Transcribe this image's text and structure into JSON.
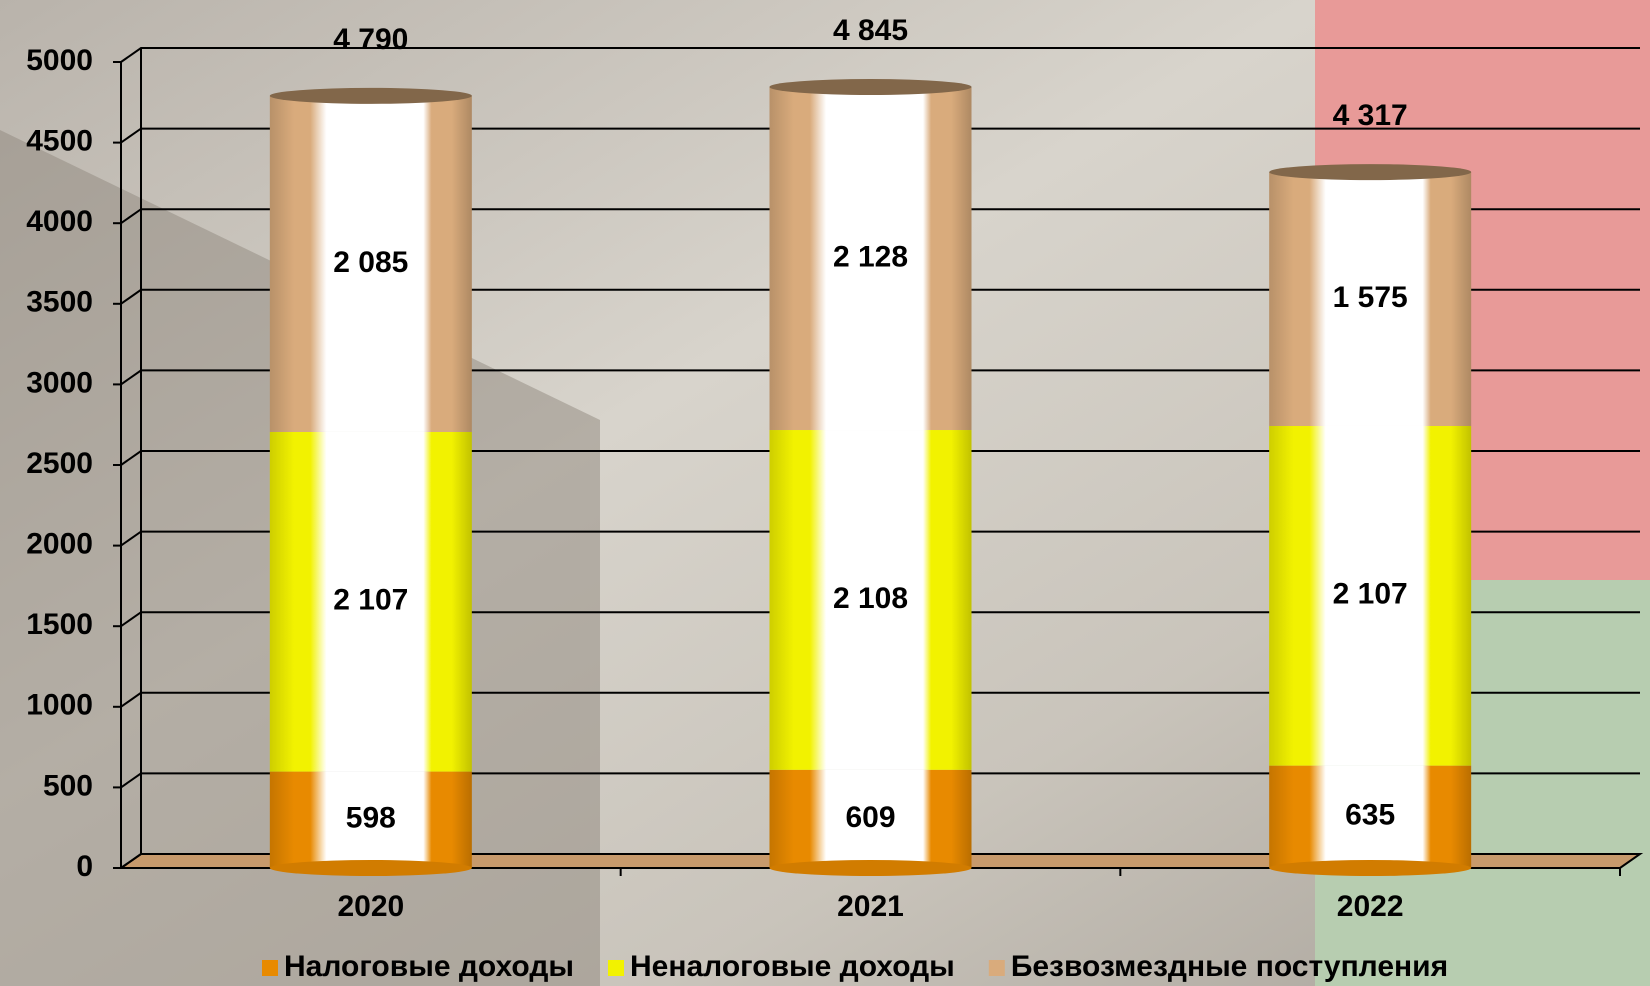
{
  "chart_data": {
    "type": "stacked-cylinder",
    "categories": [
      "2020",
      "2021",
      "2022"
    ],
    "series": [
      {
        "name": "Налоговые доходы",
        "color": "#e88a00",
        "values": [
          598,
          609,
          635
        ],
        "value_labels": [
          "598",
          "609",
          "635"
        ]
      },
      {
        "name": "Неналоговые доходы",
        "color": "#f2f200",
        "values": [
          2107,
          2108,
          2107
        ],
        "value_labels": [
          "2 107",
          "2 108",
          "2 107"
        ]
      },
      {
        "name": "Безвозмездные поступления",
        "color": "#d9ab7c",
        "values": [
          2085,
          2128,
          1575
        ],
        "value_labels": [
          "2 085",
          "2 128",
          "1 575"
        ]
      }
    ],
    "totals": [
      4790,
      4845,
      4317
    ],
    "total_labels": [
      "4 790",
      "4 845",
      "4 317"
    ],
    "ylim": [
      0,
      5000
    ],
    "yticks": [
      0,
      500,
      1000,
      1500,
      2000,
      2500,
      3000,
      3500,
      4000,
      4500,
      5000
    ],
    "grid": true,
    "legend": "bottom"
  }
}
